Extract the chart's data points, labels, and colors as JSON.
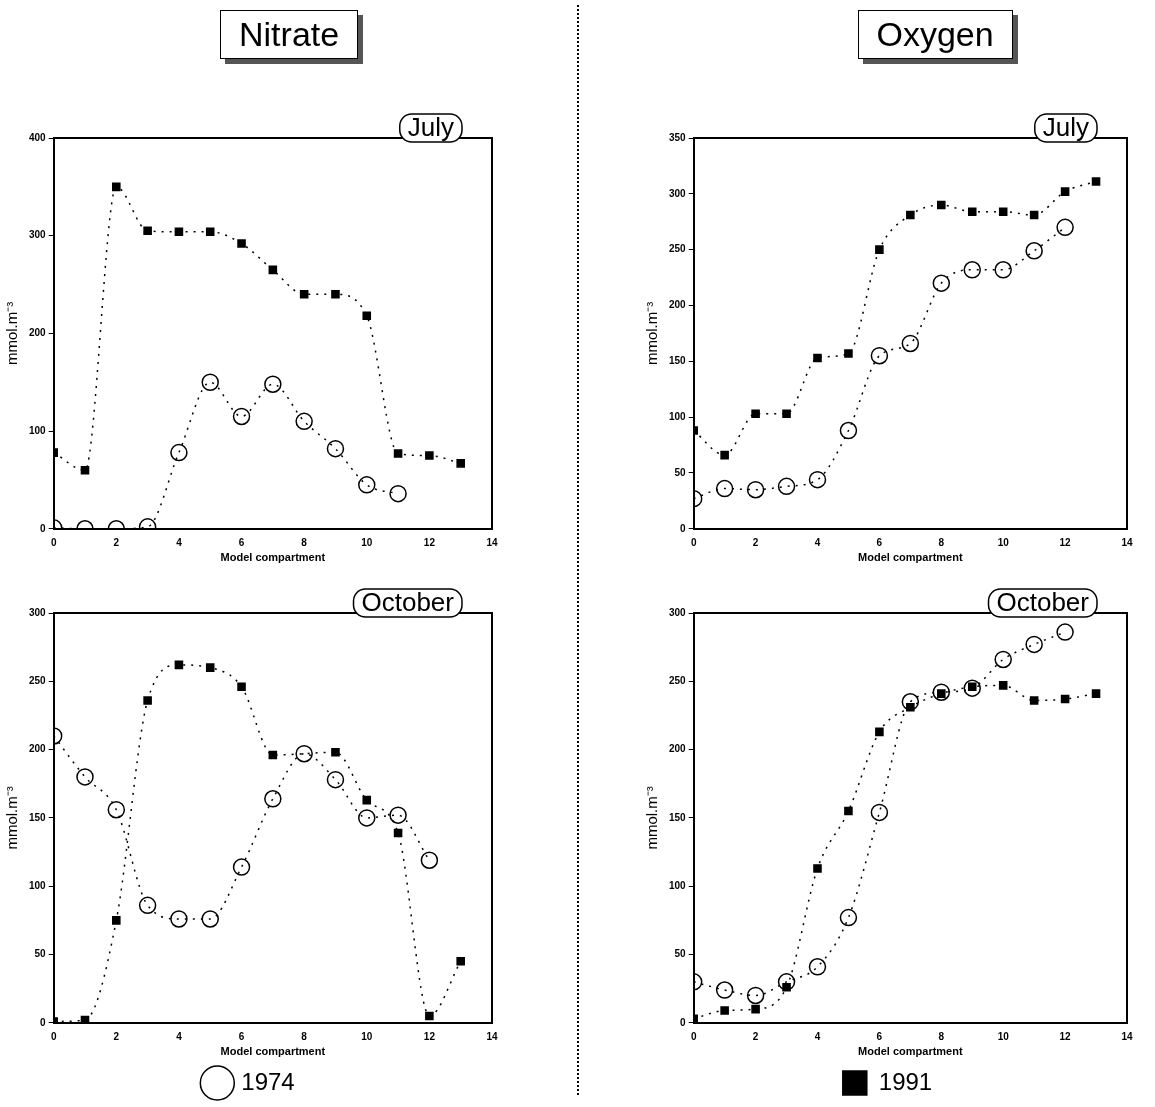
{
  "chart_data": [
    {
      "type": "line",
      "title": "Nitrate",
      "subtitle": "July",
      "xlabel": "Model compartment",
      "ylabel": "mmol.m⁻³",
      "xlim": [
        0,
        14
      ],
      "xticks": [
        0,
        2,
        4,
        6,
        8,
        10,
        12,
        14
      ],
      "ylim": [
        0,
        400
      ],
      "yticks": [
        0,
        100,
        200,
        300,
        400
      ],
      "line_style": "dotted",
      "grid": false,
      "legend": false,
      "series": [
        {
          "color": "#000000",
          "marker": "circle",
          "x": [
            0,
            1,
            2,
            3,
            4,
            5,
            6,
            7,
            8,
            9,
            10,
            11
          ],
          "values": [
            1,
            0,
            0,
            2,
            78,
            150,
            115,
            148,
            110,
            82,
            45,
            36
          ]
        },
        {
          "color": "#000000",
          "marker": "square",
          "x": [
            0,
            1,
            2,
            3,
            4,
            5,
            6,
            7,
            8,
            9,
            10,
            11,
            12,
            13
          ],
          "values": [
            78,
            60,
            350,
            305,
            304,
            304,
            292,
            265,
            240,
            240,
            218,
            77,
            75,
            67
          ]
        }
      ]
    },
    {
      "type": "line",
      "title": "Oxygen",
      "subtitle": "July",
      "xlabel": "Model compartment",
      "ylabel": "mmol.m⁻³",
      "xlim": [
        0,
        14
      ],
      "xticks": [
        0,
        2,
        4,
        6,
        8,
        10,
        12,
        14
      ],
      "ylim": [
        0,
        350
      ],
      "yticks": [
        0,
        50,
        100,
        150,
        200,
        250,
        300,
        350
      ],
      "line_style": "dotted",
      "grid": false,
      "legend": false,
      "series": [
        {
          "color": "#000000",
          "marker": "circle",
          "x": [
            0,
            1,
            2,
            3,
            4,
            5,
            6,
            7,
            8,
            9,
            10,
            11,
            12
          ],
          "values": [
            27,
            36,
            35,
            38,
            44,
            88,
            155,
            166,
            220,
            232,
            232,
            249,
            270
          ]
        },
        {
          "color": "#000000",
          "marker": "square",
          "x": [
            0,
            1,
            2,
            3,
            4,
            5,
            6,
            7,
            8,
            9,
            10,
            11,
            12,
            13
          ],
          "values": [
            88,
            66,
            103,
            103,
            153,
            157,
            250,
            281,
            290,
            284,
            284,
            281,
            302,
            311
          ]
        }
      ]
    },
    {
      "type": "line",
      "subtitle": "October",
      "xlabel": "Model compartment",
      "ylabel": "mmol.m⁻³",
      "xlim": [
        0,
        14
      ],
      "xticks": [
        0,
        2,
        4,
        6,
        8,
        10,
        12,
        14
      ],
      "ylim": [
        0,
        300
      ],
      "yticks": [
        0,
        50,
        100,
        150,
        200,
        250,
        300
      ],
      "line_style": "dotted",
      "grid": false,
      "legend": "bottom",
      "series": [
        {
          "name": "1974",
          "color": "#000000",
          "marker": "circle",
          "x": [
            0,
            1,
            2,
            3,
            4,
            5,
            6,
            7,
            8,
            9,
            10,
            11,
            12
          ],
          "values": [
            210,
            180,
            156,
            86,
            76,
            76,
            114,
            164,
            197,
            178,
            150,
            152,
            119
          ]
        },
        {
          "color": "#000000",
          "marker": "square",
          "x": [
            0,
            1,
            2,
            3,
            4,
            5,
            6,
            7,
            8,
            9,
            10,
            11,
            12,
            13
          ],
          "values": [
            1,
            2,
            75,
            236,
            262,
            260,
            246,
            196,
            null,
            198,
            163,
            139,
            5,
            45
          ]
        }
      ]
    },
    {
      "type": "line",
      "subtitle": "October",
      "xlabel": "Model compartment",
      "ylabel": "mmol.m⁻³",
      "xlim": [
        0,
        14
      ],
      "xticks": [
        0,
        2,
        4,
        6,
        8,
        10,
        12,
        14
      ],
      "ylim": [
        0,
        300
      ],
      "yticks": [
        0,
        50,
        100,
        150,
        200,
        250,
        300
      ],
      "line_style": "dotted",
      "grid": false,
      "legend": "bottom",
      "series": [
        {
          "color": "#000000",
          "marker": "circle",
          "x": [
            0,
            1,
            2,
            3,
            4,
            5,
            6,
            7,
            8,
            9,
            10,
            11,
            12
          ],
          "values": [
            30,
            24,
            20,
            30,
            41,
            77,
            154,
            235,
            242,
            245,
            266,
            277,
            286
          ]
        },
        {
          "name": "1991",
          "color": "#000000",
          "marker": "square",
          "x": [
            0,
            1,
            2,
            3,
            4,
            5,
            6,
            7,
            8,
            9,
            10,
            11,
            12,
            13
          ],
          "values": [
            3,
            9,
            10,
            26,
            113,
            155,
            213,
            231,
            241,
            246,
            247,
            236,
            237,
            241
          ]
        }
      ]
    }
  ]
}
